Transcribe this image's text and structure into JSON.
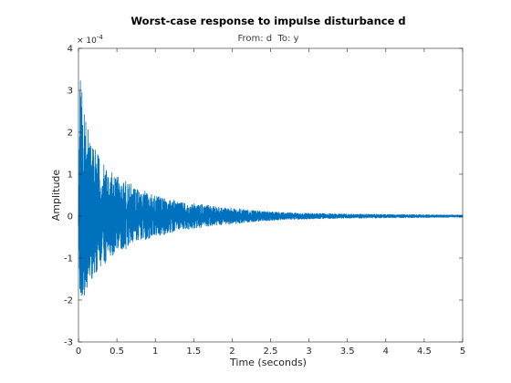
{
  "chart_data": {
    "type": "line",
    "title": "Worst-case response to impulse disturbance d",
    "subtitle": "From: d  To: y",
    "xlabel": "Time (seconds)",
    "ylabel": "Amplitude",
    "y_exponent_base": "× 10",
    "y_exponent_power": "-4",
    "xlim": [
      0,
      5
    ],
    "ylim": [
      -3,
      4
    ],
    "x_ticks": [
      "0",
      "0.5",
      "1",
      "1.5",
      "2",
      "2.5",
      "3",
      "3.5",
      "4",
      "4.5",
      "5"
    ],
    "y_ticks": [
      "-3",
      "-2",
      "-1",
      "0",
      "1",
      "2",
      "3",
      "4"
    ],
    "grid": false,
    "line_color": "#0072BD",
    "series": [
      {
        "x": [
          0,
          0.02,
          0.04,
          0.06,
          0.08,
          0.1,
          0.15,
          0.2,
          0.3,
          0.4,
          0.5,
          0.6,
          0.7,
          0.8,
          0.9,
          1.0,
          1.1,
          1.2,
          1.3,
          1.4,
          1.5,
          1.6,
          1.7,
          1.8,
          1.9,
          2.0,
          2.2,
          2.4,
          2.6,
          2.8,
          3.0,
          3.25,
          3.5,
          3.75,
          4.0,
          4.25,
          4.5,
          4.75,
          5.0
        ],
        "envelope_upper": [
          0,
          3.3,
          3.1,
          2.6,
          2.7,
          2.3,
          1.9,
          1.65,
          1.3,
          1.15,
          0.95,
          0.85,
          0.75,
          0.6,
          0.6,
          0.5,
          0.45,
          0.4,
          0.35,
          0.32,
          0.3,
          0.28,
          0.25,
          0.22,
          0.2,
          0.2,
          0.15,
          0.12,
          0.1,
          0.08,
          0.07,
          0.06,
          0.05,
          0.05,
          0.04,
          0.04,
          0.035,
          0.03,
          0.03
        ],
        "envelope_lower": [
          0,
          -2.2,
          -2.0,
          -1.9,
          -2.0,
          -1.8,
          -1.6,
          -1.4,
          -1.2,
          -1.05,
          -0.9,
          -0.8,
          -0.7,
          -0.6,
          -0.55,
          -0.5,
          -0.45,
          -0.4,
          -0.35,
          -0.32,
          -0.3,
          -0.28,
          -0.25,
          -0.22,
          -0.2,
          -0.2,
          -0.15,
          -0.12,
          -0.1,
          -0.08,
          -0.07,
          -0.06,
          -0.05,
          -0.05,
          -0.04,
          -0.04,
          -0.035,
          -0.03,
          -0.03
        ]
      }
    ]
  }
}
